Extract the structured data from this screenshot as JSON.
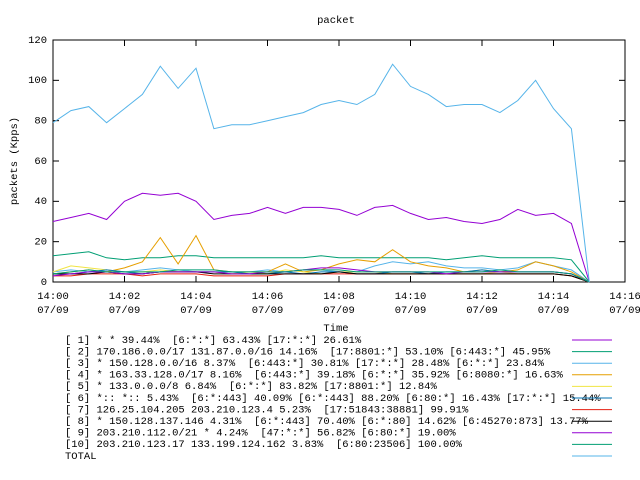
{
  "chart_data": {
    "type": "line",
    "title": "packet",
    "x_label": "Time",
    "y_label": "packets (Kpps)",
    "x": [
      0,
      0.5,
      1,
      1.5,
      2,
      2.5,
      3,
      3.5,
      4,
      4.5,
      5,
      5.5,
      6,
      6.5,
      7,
      7.5,
      8,
      8.5,
      9,
      9.5,
      10,
      10.5,
      11,
      11.5,
      12,
      12.5,
      13,
      13.5,
      14,
      14.5,
      15
    ],
    "xlim": [
      0,
      16
    ],
    "xticks": [
      {
        "value": 0,
        "label": [
          "14:00",
          "07/09"
        ]
      },
      {
        "value": 2,
        "label": [
          "14:02",
          "07/09"
        ]
      },
      {
        "value": 4,
        "label": [
          "14:04",
          "07/09"
        ]
      },
      {
        "value": 6,
        "label": [
          "14:06",
          "07/09"
        ]
      },
      {
        "value": 8,
        "label": [
          "14:08",
          "07/09"
        ]
      },
      {
        "value": 10,
        "label": [
          "14:10",
          "07/09"
        ]
      },
      {
        "value": 12,
        "label": [
          "14:12",
          "07/09"
        ]
      },
      {
        "value": 14,
        "label": [
          "14:14",
          "07/09"
        ]
      },
      {
        "value": 16,
        "label": [
          "14:16",
          "07/09"
        ]
      }
    ],
    "ylim": [
      0,
      120
    ],
    "yticks": [
      0,
      20,
      40,
      60,
      80,
      100,
      120
    ],
    "series": [
      {
        "name": "[ 1] * * 39.44%  [6:*:*] 63.43% [17:*:*] 26.61%",
        "color": "#9400d3",
        "values": [
          30,
          32,
          34,
          31,
          40,
          44,
          43,
          44,
          40,
          31,
          33,
          34,
          37,
          34,
          37,
          37,
          36,
          33,
          37,
          38,
          34,
          31,
          32,
          30,
          29,
          31,
          36,
          33,
          34,
          29,
          0
        ]
      },
      {
        "name": "[ 2] 170.186.0.0/17 131.87.0.0/16 14.16%  [17:8801:*] 53.10% [6:443:*] 45.95%",
        "color": "#009e73",
        "values": [
          13,
          14,
          15,
          12,
          11,
          12,
          12,
          13,
          13,
          12,
          12,
          12,
          12,
          12,
          12,
          13,
          12,
          12,
          12,
          12,
          12,
          12,
          11,
          12,
          13,
          12,
          12,
          12,
          12,
          11,
          0
        ]
      },
      {
        "name": "[ 3] * 150.128.0.0/16 8.37%  [6:443:*] 30.81% [17:*:*] 28.48% [6:*:*] 23.84%",
        "color": "#56b4e9",
        "values": [
          5,
          6,
          5,
          6,
          5,
          6,
          7,
          6,
          5,
          5,
          5,
          5,
          6,
          5,
          6,
          6,
          5,
          5,
          8,
          10,
          9,
          10,
          8,
          7,
          7,
          6,
          7,
          10,
          8,
          6,
          0
        ]
      },
      {
        "name": "[ 4] * 163.33.128.0/17 8.16%  [6:443:*] 39.18% [6:*:*] 35.92% [6:8080:*] 16.63%",
        "color": "#e69f00",
        "values": [
          4,
          5,
          6,
          5,
          7,
          10,
          22,
          9,
          23,
          6,
          5,
          5,
          5,
          9,
          5,
          6,
          9,
          11,
          10,
          16,
          10,
          8,
          7,
          5,
          6,
          5,
          6,
          10,
          8,
          5,
          0
        ]
      },
      {
        "name": "[ 5] * 133.0.0.0/8 6.84%  [6:*:*] 83.82% [17:8801:*] 12.84%",
        "color": "#f0e442",
        "values": [
          5,
          8,
          7,
          6,
          5,
          5,
          6,
          5,
          5,
          5,
          4,
          5,
          4,
          6,
          5,
          4,
          5,
          5,
          5,
          4,
          4,
          4,
          4,
          4,
          4,
          5,
          4,
          4,
          4,
          3,
          0
        ]
      },
      {
        "name": "[ 6] *:: *:: 5.43%  [6:*:443] 40.09% [6:*:443] 88.20% [6:80:*] 16.43% [17:*:*] 15.44%",
        "color": "#0072b2",
        "values": [
          4,
          4,
          5,
          6,
          5,
          4,
          5,
          5,
          5,
          5,
          5,
          4,
          4,
          5,
          4,
          5,
          5,
          4,
          4,
          5,
          5,
          4,
          5,
          5,
          6,
          5,
          5,
          5,
          5,
          4,
          0
        ]
      },
      {
        "name": "[ 7] 126.25.104.205 203.210.123.4 5.23%  [17:51843:38881] 99.91%",
        "color": "#e51e10",
        "values": [
          3,
          3,
          4,
          4,
          4,
          3,
          4,
          4,
          4,
          3,
          3,
          3,
          3,
          4,
          4,
          4,
          4,
          4,
          4,
          4,
          4,
          4,
          4,
          4,
          4,
          4,
          4,
          4,
          4,
          3,
          0
        ]
      },
      {
        "name": "[ 8] * 150.128.137.146 4.31%  [6:*:443] 70.40% [6:*:80] 14.62% [6:45270:873] 13.77%",
        "color": "#000000",
        "values": [
          4,
          4,
          4,
          5,
          4,
          4,
          5,
          5,
          5,
          4,
          4,
          4,
          4,
          4,
          4,
          4,
          5,
          4,
          4,
          4,
          4,
          4,
          4,
          4,
          4,
          4,
          4,
          4,
          4,
          3,
          0
        ]
      },
      {
        "name": "[ 9] 203.210.112.0/21 * 4.24%  [47:*:*] 56.82% [6:80:*] 19.00%",
        "color": "#9400d3",
        "values": [
          3,
          4,
          5,
          5,
          4,
          4,
          5,
          5,
          5,
          5,
          4,
          4,
          5,
          5,
          6,
          7,
          7,
          6,
          5,
          5,
          5,
          5,
          4,
          5,
          5,
          5,
          5,
          5,
          5,
          4,
          0
        ]
      },
      {
        "name": "[10] 203.210.123.17 133.199.124.162 3.83%  [6:80:23506] 100.00%",
        "color": "#009e73",
        "values": [
          4,
          5,
          6,
          5,
          5,
          5,
          5,
          6,
          6,
          6,
          5,
          5,
          5,
          5,
          6,
          6,
          6,
          5,
          5,
          5,
          5,
          5,
          5,
          5,
          5,
          6,
          5,
          5,
          5,
          4,
          0
        ]
      },
      {
        "name": "TOTAL",
        "color": "#56b4e9",
        "values": [
          79,
          85,
          87,
          79,
          86,
          93,
          107,
          96,
          106,
          76,
          78,
          78,
          80,
          82,
          84,
          88,
          90,
          88,
          93,
          108,
          97,
          93,
          87,
          88,
          88,
          84,
          90,
          100,
          86,
          76,
          0
        ]
      }
    ]
  }
}
